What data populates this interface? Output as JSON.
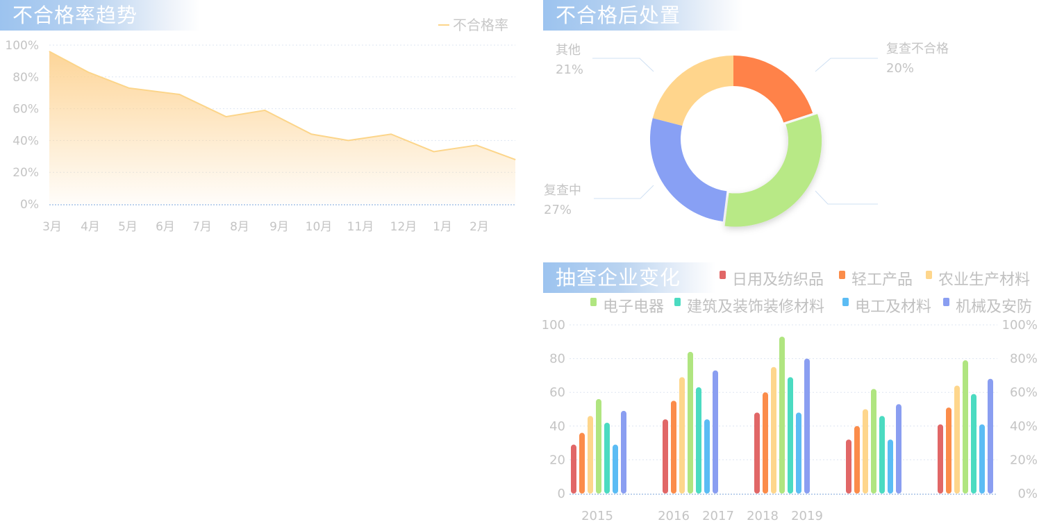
{
  "colors": {
    "area_line": "#fcd58a",
    "area_fill_top": "#fdd393",
    "grid": "#dde6f2",
    "axis": "#a6c2e6",
    "tick_text": "#c4c4c4",
    "title_grad_start": "#9cc3ef"
  },
  "panels": {
    "trend_title": "不合格率趋势",
    "disposal_title": "不合格后处置",
    "enterprise_title": "抽查企业变化"
  },
  "chart_data": [
    {
      "id": "trend",
      "type": "area",
      "title": "不合格率趋势",
      "legend": [
        "不合格率"
      ],
      "legend_position": "top-right",
      "categories": [
        "3月",
        "4月",
        "5月",
        "6月",
        "7月",
        "8月",
        "9月",
        "10月",
        "11月",
        "12月",
        "1月",
        "2月"
      ],
      "x": [
        0,
        1,
        2,
        3,
        4,
        5,
        6,
        7,
        8,
        9,
        10,
        11,
        12
      ],
      "series": [
        {
          "name": "不合格率",
          "values": [
            96,
            83,
            73,
            69,
            55,
            59,
            44,
            40,
            44,
            33,
            37,
            28
          ]
        }
      ],
      "x_points": [
        0.0,
        1.0,
        2.05,
        3.35,
        4.55,
        5.55,
        6.75,
        7.7,
        8.8,
        9.9,
        11.0,
        12.0
      ],
      "xlim": [
        0,
        12
      ],
      "y_ticks": [
        "0%",
        "20%",
        "40%",
        "60%",
        "80%",
        "100%"
      ],
      "ylim": [
        0,
        100
      ],
      "grid": true
    },
    {
      "id": "disposal",
      "type": "pie",
      "title": "不合格后处置",
      "slices": [
        {
          "label": "复查不合格",
          "value": 20,
          "display": "20%",
          "color": "#ff8249"
        },
        {
          "label": "",
          "value": 32,
          "display": "",
          "color": "#b8e986"
        },
        {
          "label": "复查中",
          "value": 27,
          "display": "27%",
          "color": "#88a0f4"
        },
        {
          "label": "其他",
          "value": 21,
          "display": "21%",
          "color": "#ffd58c"
        }
      ]
    },
    {
      "id": "enterprise",
      "type": "bar",
      "title": "抽查企业变化",
      "legend_position": "top-right",
      "categories": [
        "2015",
        "2016",
        "2018",
        "2019",
        ""
      ],
      "x_tick_labels": [
        {
          "text": "2015",
          "group": 0
        },
        {
          "text": "2016",
          "group": 1
        },
        {
          "text": "2017",
          "group": 1.5
        },
        {
          "text": "2018",
          "group": 2
        },
        {
          "text": "2019",
          "group": 2.5
        }
      ],
      "series": [
        {
          "name": "日用及纺织品",
          "color": "#e16767",
          "values": [
            29,
            44,
            48,
            32,
            41
          ]
        },
        {
          "name": "轻工产品",
          "color": "#fb8c4a",
          "values": [
            36,
            55,
            60,
            40,
            51
          ]
        },
        {
          "name": "农业生产材料",
          "color": "#fed68c",
          "values": [
            46,
            69,
            75,
            50,
            64
          ]
        },
        {
          "name": "电子电器",
          "color": "#b0e580",
          "values": [
            56,
            84,
            93,
            62,
            79
          ]
        },
        {
          "name": "建筑及装饰装修材料",
          "color": "#4bdbc1",
          "values": [
            42,
            63,
            69,
            46,
            59
          ]
        },
        {
          "name": "电工及材料",
          "color": "#5bbcf4",
          "values": [
            29,
            44,
            48,
            32,
            41
          ]
        },
        {
          "name": "机械及安防",
          "color": "#8a9ef1",
          "values": [
            49,
            73,
            80,
            53,
            68
          ]
        }
      ],
      "y_ticks_left": [
        "0",
        "20",
        "40",
        "60",
        "80",
        "100"
      ],
      "y_ticks_right": [
        "0%",
        "20%",
        "40%",
        "60%",
        "80%",
        "100%"
      ],
      "ylim": [
        0,
        100
      ],
      "grid": true
    }
  ]
}
